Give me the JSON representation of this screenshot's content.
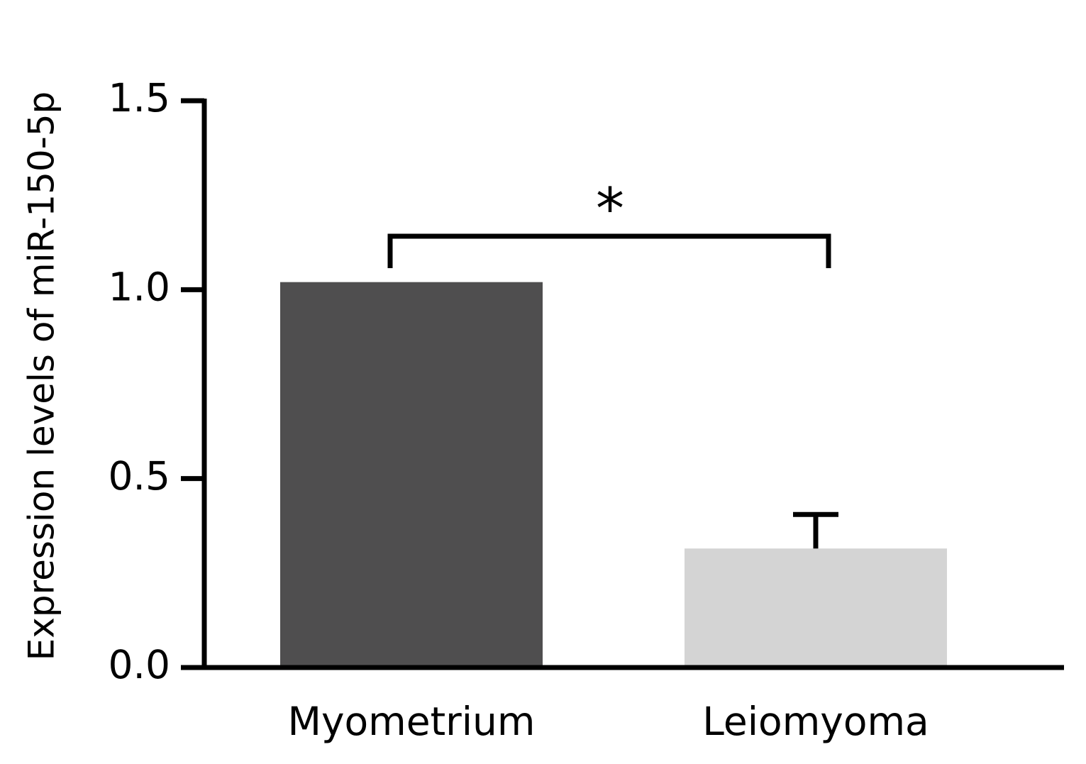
{
  "chart_data": {
    "type": "bar",
    "y_label": "Expression levels of miR-150-5p",
    "categories": [
      "Myometrium",
      "Leiomyoma"
    ],
    "values": [
      1.02,
      0.315
    ],
    "errors": [
      null,
      0.09
    ],
    "colors": [
      "#4f4e4f",
      "#d4d4d4"
    ],
    "ylim": [
      0,
      1.5
    ],
    "yticks": [
      {
        "value": 0,
        "label": "0.0"
      },
      0.5,
      {
        "value": 1,
        "label": "1.0"
      },
      1.5
    ],
    "annotation": "*"
  }
}
